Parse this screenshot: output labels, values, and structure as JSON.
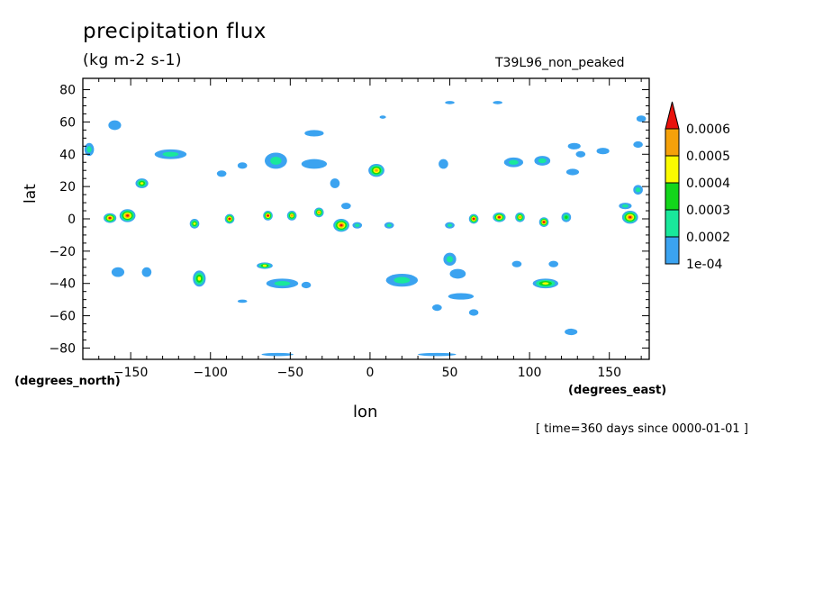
{
  "title": "precipitation flux",
  "units": "(kg m-2 s-1)",
  "run_name": "T39L96_non_peaked",
  "time_note": "[ time=360 days since 0000-01-01 ]",
  "chart_data": {
    "type": "contour",
    "xlabel": "lon",
    "ylabel": "lat",
    "x_units_label": "(degrees_east)",
    "y_units_label": "(degrees_north)",
    "xlim": [
      -180,
      175
    ],
    "ylim": [
      -87,
      87
    ],
    "x_ticks": [
      -150,
      -100,
      -50,
      0,
      50,
      100,
      150
    ],
    "x_tick_labels": [
      "−150",
      "−100",
      "−50",
      "0",
      "50",
      "100",
      "150"
    ],
    "y_ticks": [
      80,
      60,
      40,
      20,
      0,
      -20,
      -40,
      -60,
      -80
    ],
    "y_tick_labels": [
      "80",
      "60",
      "40",
      "20",
      "0",
      "−20",
      "−40",
      "−60",
      "−80"
    ],
    "levels": [
      0.0001,
      0.0002,
      0.0003,
      0.0004,
      0.0005,
      0.0006
    ],
    "level_labels": [
      "1e-04",
      "0.0002",
      "0.0003",
      "0.0004",
      "0.0005",
      "0.0006"
    ],
    "fill_colors": [
      "#3ba3f0",
      "#19e89b",
      "#13d61b",
      "#fbfb00",
      "#f5a10a",
      "#e8120c"
    ],
    "colorbar_extend": "max",
    "features": [
      {
        "lon": -152,
        "lat": 2,
        "peak": 0.00065,
        "rx": 5,
        "ry": 4
      },
      {
        "lon": -163,
        "lat": 0.5,
        "peak": 0.00062,
        "rx": 4,
        "ry": 3
      },
      {
        "lon": -88,
        "lat": 0,
        "peak": 0.00061,
        "rx": 3,
        "ry": 3
      },
      {
        "lon": -64,
        "lat": 2,
        "peak": 0.00062,
        "rx": 3,
        "ry": 3
      },
      {
        "lon": -49,
        "lat": 2,
        "peak": 0.00055,
        "rx": 3,
        "ry": 3
      },
      {
        "lon": -32,
        "lat": 4,
        "peak": 0.00056,
        "rx": 3,
        "ry": 3
      },
      {
        "lon": -18,
        "lat": -4,
        "peak": 0.00068,
        "rx": 5,
        "ry": 4
      },
      {
        "lon": 65,
        "lat": 0,
        "peak": 0.00062,
        "rx": 3,
        "ry": 3
      },
      {
        "lon": 81,
        "lat": 1,
        "peak": 0.00064,
        "rx": 4,
        "ry": 3
      },
      {
        "lon": 94,
        "lat": 1,
        "peak": 0.00052,
        "rx": 3,
        "ry": 3
      },
      {
        "lon": 109,
        "lat": -2,
        "peak": 0.00062,
        "rx": 3,
        "ry": 3
      },
      {
        "lon": 163,
        "lat": 1,
        "peak": 0.00061,
        "rx": 5,
        "ry": 4
      },
      {
        "lon": -110,
        "lat": -3,
        "peak": 0.00042,
        "rx": 3,
        "ry": 3
      },
      {
        "lon": -143,
        "lat": 22,
        "peak": 0.00042,
        "rx": 4,
        "ry": 3
      },
      {
        "lon": 4,
        "lat": 30,
        "peak": 0.00052,
        "rx": 5,
        "ry": 4
      },
      {
        "lon": 110,
        "lat": -40,
        "peak": 0.00042,
        "rx": 8,
        "ry": 3
      },
      {
        "lon": -107,
        "lat": -37,
        "peak": 0.00045,
        "rx": 4,
        "ry": 5
      },
      {
        "lon": -66,
        "lat": -29,
        "peak": 0.00042,
        "rx": 5,
        "ry": 2
      },
      {
        "lon": 123,
        "lat": 1,
        "peak": 0.0003,
        "rx": 3,
        "ry": 3
      },
      {
        "lon": -8,
        "lat": -4,
        "peak": 0.00025,
        "rx": 3,
        "ry": 2
      },
      {
        "lon": 12,
        "lat": -4,
        "peak": 0.00022,
        "rx": 3,
        "ry": 2
      },
      {
        "lon": 50,
        "lat": -4,
        "peak": 0.00022,
        "rx": 3,
        "ry": 2
      },
      {
        "lon": 168,
        "lat": 18,
        "peak": 0.00022,
        "rx": 3,
        "ry": 3
      },
      {
        "lon": 160,
        "lat": 8,
        "peak": 0.00022,
        "rx": 4,
        "ry": 2
      },
      {
        "lon": -176,
        "lat": 43,
        "peak": 0.00022,
        "rx": 3,
        "ry": 4
      },
      {
        "lon": -160,
        "lat": 58,
        "peak": 0.00018,
        "rx": 4,
        "ry": 3
      },
      {
        "lon": -125,
        "lat": 40,
        "peak": 0.0002,
        "rx": 10,
        "ry": 3
      },
      {
        "lon": -93,
        "lat": 28,
        "peak": 0.00018,
        "rx": 3,
        "ry": 2
      },
      {
        "lon": -80,
        "lat": 33,
        "peak": 0.00016,
        "rx": 3,
        "ry": 2
      },
      {
        "lon": -59,
        "lat": 36,
        "peak": 0.00022,
        "rx": 7,
        "ry": 5
      },
      {
        "lon": -35,
        "lat": 53,
        "peak": 0.00018,
        "rx": 6,
        "ry": 2
      },
      {
        "lon": -35,
        "lat": 34,
        "peak": 0.00018,
        "rx": 8,
        "ry": 3
      },
      {
        "lon": -22,
        "lat": 22,
        "peak": 0.00016,
        "rx": 3,
        "ry": 3
      },
      {
        "lon": 46,
        "lat": 34,
        "peak": 0.00018,
        "rx": 3,
        "ry": 3
      },
      {
        "lon": 90,
        "lat": 35,
        "peak": 0.00022,
        "rx": 6,
        "ry": 3
      },
      {
        "lon": 108,
        "lat": 36,
        "peak": 0.0002,
        "rx": 5,
        "ry": 3
      },
      {
        "lon": 127,
        "lat": 29,
        "peak": 0.00018,
        "rx": 4,
        "ry": 2
      },
      {
        "lon": 128,
        "lat": 45,
        "peak": 0.00016,
        "rx": 4,
        "ry": 2
      },
      {
        "lon": 146,
        "lat": 42,
        "peak": 0.00016,
        "rx": 4,
        "ry": 2
      },
      {
        "lon": 168,
        "lat": 46,
        "peak": 0.00016,
        "rx": 3,
        "ry": 2
      },
      {
        "lon": 170,
        "lat": 62,
        "peak": 0.00016,
        "rx": 3,
        "ry": 2
      },
      {
        "lon": -55,
        "lat": -40,
        "peak": 0.00022,
        "rx": 10,
        "ry": 3
      },
      {
        "lon": -140,
        "lat": -33,
        "peak": 0.00016,
        "rx": 3,
        "ry": 3
      },
      {
        "lon": -158,
        "lat": -33,
        "peak": 0.00016,
        "rx": 4,
        "ry": 3
      },
      {
        "lon": -40,
        "lat": -41,
        "peak": 0.00016,
        "rx": 3,
        "ry": 2
      },
      {
        "lon": 20,
        "lat": -38,
        "peak": 0.0002,
        "rx": 10,
        "ry": 4
      },
      {
        "lon": 50,
        "lat": -25,
        "peak": 0.0002,
        "rx": 4,
        "ry": 4
      },
      {
        "lon": 55,
        "lat": -34,
        "peak": 0.00018,
        "rx": 5,
        "ry": 3
      },
      {
        "lon": 57,
        "lat": -48,
        "peak": 0.00018,
        "rx": 8,
        "ry": 2
      },
      {
        "lon": 92,
        "lat": -28,
        "peak": 0.00016,
        "rx": 3,
        "ry": 2
      },
      {
        "lon": 115,
        "lat": -28,
        "peak": 0.00014,
        "rx": 3,
        "ry": 2
      },
      {
        "lon": 126,
        "lat": -70,
        "peak": 0.00016,
        "rx": 4,
        "ry": 2
      },
      {
        "lon": 65,
        "lat": -58,
        "peak": 0.00016,
        "rx": 3,
        "ry": 2
      },
      {
        "lon": 42,
        "lat": -55,
        "peak": 0.00014,
        "rx": 3,
        "ry": 2
      },
      {
        "lon": -15,
        "lat": 8,
        "peak": 0.00016,
        "rx": 3,
        "ry": 2
      },
      {
        "lon": 42,
        "lat": -84,
        "peak": 0.00014,
        "rx": 12,
        "ry": 1
      },
      {
        "lon": -58,
        "lat": -84,
        "peak": 0.00014,
        "rx": 10,
        "ry": 1
      },
      {
        "lon": 50,
        "lat": 72,
        "peak": 0.00014,
        "rx": 3,
        "ry": 1
      },
      {
        "lon": 80,
        "lat": 72,
        "peak": 0.00013,
        "rx": 3,
        "ry": 1
      },
      {
        "lon": 8,
        "lat": 63,
        "peak": 0.00013,
        "rx": 2,
        "ry": 1
      },
      {
        "lon": 132,
        "lat": 40,
        "peak": 0.00013,
        "rx": 3,
        "ry": 2
      },
      {
        "lon": -80,
        "lat": -51,
        "peak": 0.00013,
        "rx": 3,
        "ry": 1
      }
    ]
  }
}
